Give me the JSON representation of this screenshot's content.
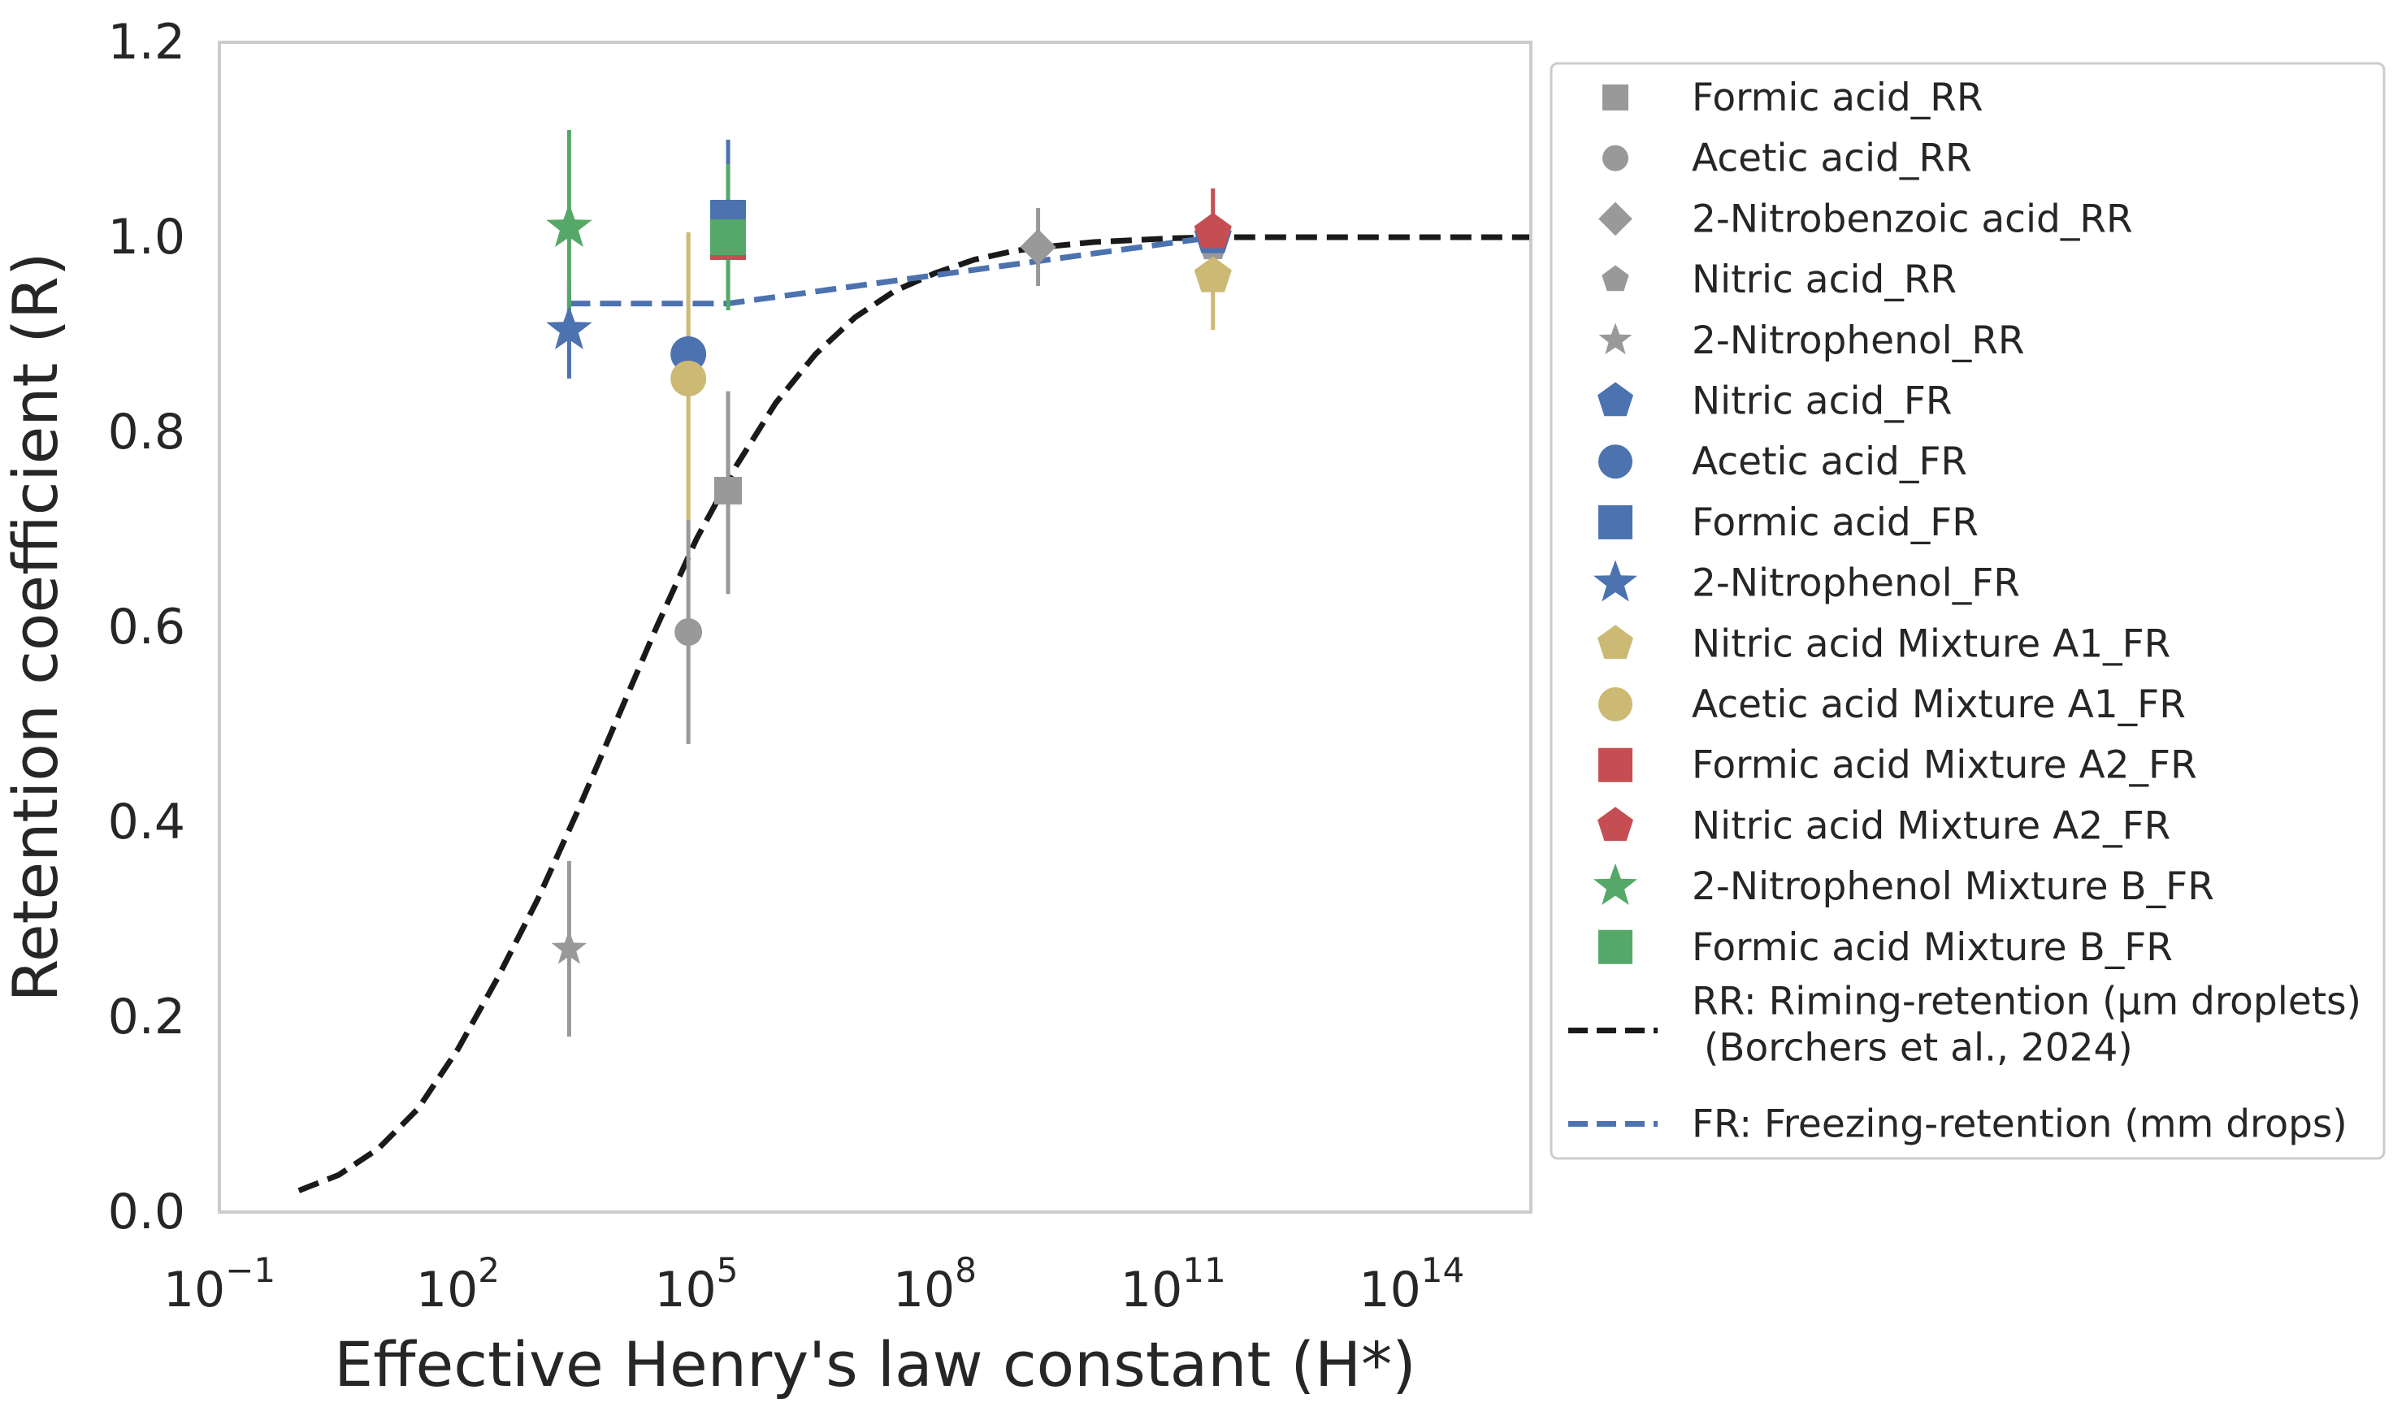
{
  "chart_data": {
    "type": "scatter",
    "xlabel": "Effective Henry's law constant (H*)",
    "ylabel": "Retention coefficient (R)",
    "x_scale": "log",
    "xlim": [
      0.1,
      3160000000000000.0
    ],
    "ylim": [
      0.0,
      1.2
    ],
    "grid": false,
    "legend_position": "outside-right",
    "colors": {
      "gray": "#999999",
      "blue": "#4c72b0",
      "yellow": "#ccb974",
      "red": "#c44e52",
      "green": "#55a868",
      "black": "#1a1a1a"
    },
    "x_ticks": [
      {
        "value": 0.1,
        "base": "10",
        "exp": "−1"
      },
      {
        "value": 100,
        "base": "10",
        "exp": "2"
      },
      {
        "value": 100000,
        "base": "10",
        "exp": "5"
      },
      {
        "value": 100000000,
        "base": "10",
        "exp": "8"
      },
      {
        "value": 100000000000,
        "base": "10",
        "exp": "11"
      },
      {
        "value": 100000000000000,
        "base": "10",
        "exp": "14"
      }
    ],
    "y_ticks": [
      "0.0",
      "0.2",
      "0.4",
      "0.6",
      "0.8",
      "1.0",
      "1.2"
    ],
    "series": [
      {
        "name": "Formic acid_RR",
        "marker": "square",
        "color": "#999999",
        "size": "small",
        "points": [
          {
            "x": 251189,
            "y": 0.74,
            "yerr": [
              0.634,
              0.842
            ]
          }
        ]
      },
      {
        "name": "Acetic acid_RR",
        "marker": "circle",
        "color": "#999999",
        "size": "small",
        "points": [
          {
            "x": 79433,
            "y": 0.595,
            "yerr": [
              0.48,
              0.71
            ]
          }
        ]
      },
      {
        "name": "2-Nitrobenzoic acid_RR",
        "marker": "diamond",
        "color": "#999999",
        "size": "small",
        "points": [
          {
            "x": 1995262315,
            "y": 0.99,
            "yerr": [
              0.95,
              1.03
            ]
          }
        ]
      },
      {
        "name": "Nitric acid_RR",
        "marker": "pentagon",
        "color": "#999999",
        "size": "small",
        "points": [
          {
            "x": 316227766017,
            "y": 0.99,
            "yerr": [
              0.97,
              1.01
            ]
          }
        ]
      },
      {
        "name": "2-Nitrophenol_RR",
        "marker": "star",
        "color": "#999999",
        "size": "small",
        "points": [
          {
            "x": 2512,
            "y": 0.27,
            "yerr": [
              0.18,
              0.36
            ]
          }
        ]
      },
      {
        "name": "Nitric acid_FR",
        "marker": "pentagon",
        "color": "#4c72b0",
        "size": "large",
        "points": [
          {
            "x": 316227766017,
            "y": 1.0,
            "yerr": [
              0.98,
              1.02
            ]
          }
        ]
      },
      {
        "name": "Acetic acid_FR",
        "marker": "circle",
        "color": "#4c72b0",
        "size": "large",
        "points": [
          {
            "x": 79433,
            "y": 0.88,
            "yerr": [
              0.86,
              0.9
            ]
          }
        ]
      },
      {
        "name": "Formic acid_FR",
        "marker": "square",
        "color": "#4c72b0",
        "size": "large",
        "points": [
          {
            "x": 251189,
            "y": 1.02,
            "yerr": [
              0.94,
              1.1
            ]
          }
        ]
      },
      {
        "name": "2-Nitrophenol_FR",
        "marker": "star",
        "color": "#4c72b0",
        "size": "large",
        "points": [
          {
            "x": 2512,
            "y": 0.905,
            "yerr": [
              0.855,
              0.955
            ]
          }
        ]
      },
      {
        "name": "Nitric acid Mixture A1_FR",
        "marker": "pentagon",
        "color": "#ccb974",
        "size": "large",
        "points": [
          {
            "x": 316227766017,
            "y": 0.96,
            "yerr": [
              0.905,
              1.0
            ]
          }
        ]
      },
      {
        "name": "Acetic acid Mixture A1_FR",
        "marker": "circle",
        "color": "#ccb974",
        "size": "large",
        "points": [
          {
            "x": 79433,
            "y": 0.855,
            "yerr": [
              0.71,
              1.005
            ]
          }
        ]
      },
      {
        "name": "Formic acid Mixture A2_FR",
        "marker": "square",
        "color": "#c44e52",
        "size": "large",
        "points": [
          {
            "x": 251189,
            "y": 0.995,
            "yerr": [
              0.98,
              1.01
            ]
          }
        ]
      },
      {
        "name": "Nitric acid Mixture A2_FR",
        "marker": "pentagon",
        "color": "#c44e52",
        "size": "large",
        "points": [
          {
            "x": 316227766017,
            "y": 1.005,
            "yerr": [
              0.96,
              1.05
            ]
          }
        ]
      },
      {
        "name": "2-Nitrophenol Mixture B_FR",
        "marker": "star",
        "color": "#55a868",
        "size": "large",
        "points": [
          {
            "x": 2512,
            "y": 1.01,
            "yerr": [
              0.91,
              1.11
            ]
          }
        ]
      },
      {
        "name": "Formic acid Mixture B_FR",
        "marker": "square",
        "color": "#55a868",
        "size": "large",
        "points": [
          {
            "x": 251189,
            "y": 1.0,
            "yerr": [
              0.925,
              1.075
            ]
          }
        ]
      }
    ],
    "lines": [
      {
        "name": "RR: Riming-retention (μm droplets)\n (Borchers et al., 2024)",
        "legend_lines": [
          "RR: Riming-retention (μm droplets)",
          " (Borchers et al., 2024)"
        ],
        "style": "dashed",
        "color": "#1a1a1a",
        "x": [
          1,
          3.16,
          10,
          31.6,
          100,
          316,
          1000,
          3160,
          10000,
          31600,
          100000,
          316000,
          1000000,
          3160000,
          10000000,
          31600000,
          100000000,
          316000000,
          1000000000,
          3160000000,
          10000000000,
          31600000000,
          100000000000,
          316000000000,
          1000000000000,
          10000000000000,
          100000000000000,
          1000000000000000,
          3160000000000000
        ],
        "y": [
          0.022,
          0.038,
          0.065,
          0.106,
          0.167,
          0.24,
          0.32,
          0.41,
          0.505,
          0.6,
          0.69,
          0.765,
          0.83,
          0.88,
          0.918,
          0.945,
          0.963,
          0.977,
          0.986,
          0.991,
          0.995,
          0.997,
          0.999,
          1.0,
          1.0,
          1.0,
          1.0,
          1.0,
          1.0
        ]
      },
      {
        "name": "FR: Freezing-retention (mm drops)",
        "legend_lines": [
          "FR: Freezing-retention (mm drops)"
        ],
        "style": "dashed",
        "color": "#4c72b0",
        "x": [
          2512,
          251189,
          316227766017
        ],
        "y": [
          0.932,
          0.932,
          1.0
        ]
      }
    ]
  }
}
